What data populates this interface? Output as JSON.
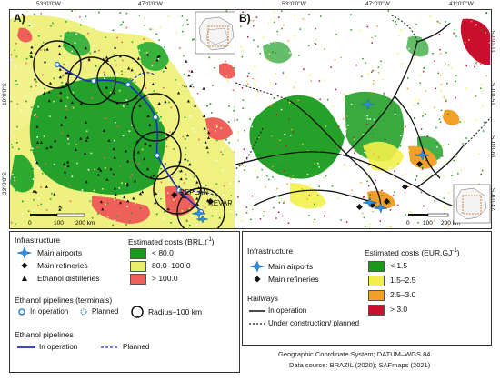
{
  "panels": {
    "a_label": "A)",
    "b_label": "B)"
  },
  "coords": {
    "top_53w": "53°0'0\"W",
    "top_47w": "47°0'0\"W",
    "top_41w": "41°0'0\"W",
    "left_19s": "19°0'0\"S",
    "left_23s": "23°0'0\"S",
    "right_11s": "11°0'0\"S",
    "right_15s": "15°0'0\"S",
    "right_19s": "19°0'0\"S",
    "right_23s": "23°0'0\"S"
  },
  "map_a": {
    "replan": "REPLAN",
    "revap": "REVAP",
    "scale": [
      "0",
      "100",
      "200 km"
    ]
  },
  "map_b": {
    "scale": [
      "0",
      "100",
      "200 km"
    ]
  },
  "legend_a": {
    "infra_title": "Infrastructure",
    "airports": "Main airports",
    "refineries": "Main refineries",
    "distilleries": "Ethanol distilleries",
    "cost_title": "Estimated costs (BRL.t",
    "cost_sup": "-1",
    "cost_close": ")",
    "cost_low": "< 80.0",
    "cost_mid": "80.0–100.0",
    "cost_high": "> 100.0",
    "terminals_title": "Ethanol pipelines (terminals)",
    "in_operation": "In operation",
    "planned": "Planned",
    "radius": "Radius–100 km",
    "pipelines_title": "Ethanol pipelines",
    "pipe_in_operation": "In operation",
    "pipe_planned": "Planned",
    "colors": {
      "low": "#1a9a1a",
      "mid": "#e9ef6a",
      "high": "#f0605a"
    }
  },
  "legend_b": {
    "infra_title": "Infrastructure",
    "airports": "Main airports",
    "refineries": "Main refineries",
    "cost_title": "Estimated costs (EUR.GJ",
    "cost_sup": "-1",
    "cost_close": ")",
    "c1": "< 1.5",
    "c2": "1.5–2.5",
    "c3": "2.5–3.0",
    "c4": "> 3.0",
    "railways_title": "Railways",
    "rail_op": "In operation",
    "rail_plan": "Under construction/ planned",
    "colors": {
      "c1": "#1a9a1a",
      "c2": "#f2ef4a",
      "c3": "#f2a02a",
      "c4": "#c8102e"
    }
  },
  "source": {
    "line1": "Geographic Coordinate System; DATUM–WGS 84.",
    "line2": "Data source: BRAZIL (2020); SAFmaps (2021)"
  }
}
